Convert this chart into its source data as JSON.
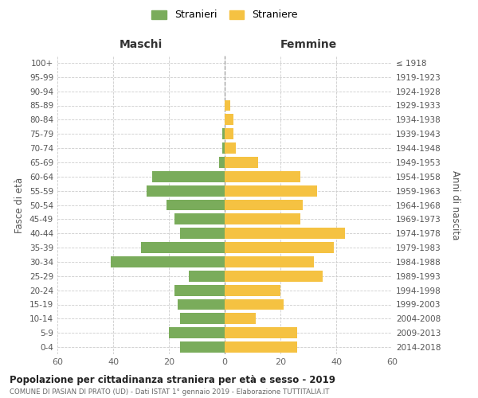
{
  "age_groups": [
    "0-4",
    "5-9",
    "10-14",
    "15-19",
    "20-24",
    "25-29",
    "30-34",
    "35-39",
    "40-44",
    "45-49",
    "50-54",
    "55-59",
    "60-64",
    "65-69",
    "70-74",
    "75-79",
    "80-84",
    "85-89",
    "90-94",
    "95-99",
    "100+"
  ],
  "birth_years": [
    "2014-2018",
    "2009-2013",
    "2004-2008",
    "1999-2003",
    "1994-1998",
    "1989-1993",
    "1984-1988",
    "1979-1983",
    "1974-1978",
    "1969-1973",
    "1964-1968",
    "1959-1963",
    "1954-1958",
    "1949-1953",
    "1944-1948",
    "1939-1943",
    "1934-1938",
    "1929-1933",
    "1924-1928",
    "1919-1923",
    "≤ 1918"
  ],
  "maschi": [
    16,
    20,
    16,
    17,
    18,
    13,
    41,
    30,
    16,
    18,
    21,
    28,
    26,
    2,
    1,
    1,
    0,
    0,
    0,
    0,
    0
  ],
  "femmine": [
    26,
    26,
    11,
    21,
    20,
    35,
    32,
    39,
    43,
    27,
    28,
    33,
    27,
    12,
    4,
    3,
    3,
    2,
    0,
    0,
    0
  ],
  "color_maschi": "#7aac5b",
  "color_femmine": "#f5c242",
  "title": "Popolazione per cittadinanza straniera per età e sesso - 2019",
  "subtitle": "COMUNE DI PASIAN DI PRATO (UD) - Dati ISTAT 1° gennaio 2019 - Elaborazione TUTTITALIA.IT",
  "xlabel_left": "Maschi",
  "xlabel_right": "Femmine",
  "ylabel_left": "Fasce di età",
  "ylabel_right": "Anni di nascita",
  "legend_maschi": "Stranieri",
  "legend_femmine": "Straniere",
  "xlim": 60,
  "background_color": "#ffffff",
  "grid_color": "#cccccc"
}
